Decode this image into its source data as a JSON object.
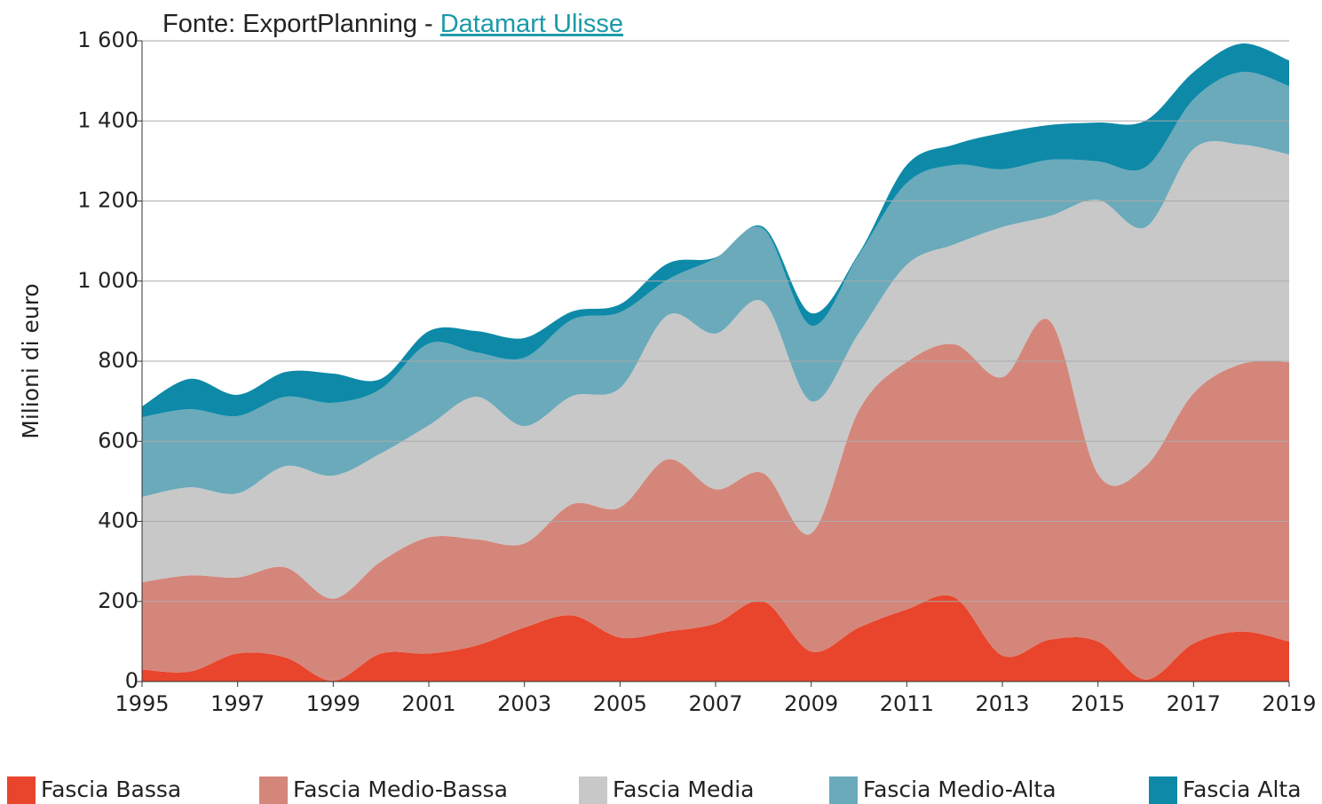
{
  "chart_data": {
    "type": "stacked-area",
    "source": "Fonte: ExportPlanning - ",
    "source_link": "Datamart Ulisse",
    "y_label": "Milioni di euro",
    "x": [
      1995,
      1996,
      1997,
      1998,
      1999,
      2000,
      2001,
      2002,
      2003,
      2004,
      2005,
      2006,
      2007,
      2008,
      2009,
      2010,
      2011,
      2012,
      2013,
      2014,
      2015,
      2016,
      2017,
      2018,
      2019
    ],
    "xlim": [
      1995,
      2019
    ],
    "xticks": [
      1995,
      1997,
      1999,
      2001,
      2003,
      2005,
      2007,
      2009,
      2011,
      2013,
      2015,
      2017,
      2019
    ],
    "ylim": [
      0,
      1600
    ],
    "yticks": [
      0,
      200,
      400,
      600,
      800,
      {
        "value": 1000,
        "label": "1 000"
      },
      {
        "value": 1200,
        "label": "1 200"
      },
      {
        "value": 1400,
        "label": "1 400"
      },
      {
        "value": 1600,
        "label": "1 600"
      }
    ],
    "grid": true,
    "series": [
      {
        "name": "Fascia Bassa",
        "color": "#e8452c",
        "values": [
          30,
          25,
          70,
          60,
          2,
          70,
          70,
          90,
          135,
          165,
          110,
          125,
          145,
          200,
          75,
          135,
          180,
          210,
          65,
          105,
          100,
          5,
          95,
          125,
          100
        ]
      },
      {
        "name": "Fascia Medio-Bassa",
        "color": "#d5867a",
        "values": [
          218,
          240,
          190,
          225,
          205,
          230,
          290,
          265,
          210,
          278,
          325,
          430,
          335,
          320,
          295,
          543,
          618,
          632,
          695,
          795,
          418,
          533,
          625,
          668,
          698
        ]
      },
      {
        "name": "Fascia Media",
        "color": "#c8c8c8",
        "values": [
          213,
          220,
          210,
          253,
          307,
          270,
          280,
          356,
          293,
          270,
          298,
          360,
          389,
          428,
          330,
          193,
          243,
          250,
          375,
          263,
          685,
          597,
          610,
          548,
          518
        ]
      },
      {
        "name": "Fascia Medio-Alta",
        "color": "#6aaabb",
        "values": [
          199,
          195,
          193,
          173,
          182,
          161,
          204,
          111,
          171,
          191,
          189,
          89,
          188,
          182,
          189,
          195,
          204,
          198,
          144,
          140,
          96,
          150,
          124,
          181,
          171
        ]
      },
      {
        "name": "Fascia Alta",
        "color": "#0e8aa8",
        "values": [
          27,
          76,
          53,
          62,
          73,
          25,
          31,
          53,
          49,
          20,
          20,
          40,
          2,
          5,
          31,
          4,
          45,
          51,
          91,
          87,
          97,
          116,
          68,
          71,
          64
        ]
      }
    ]
  }
}
